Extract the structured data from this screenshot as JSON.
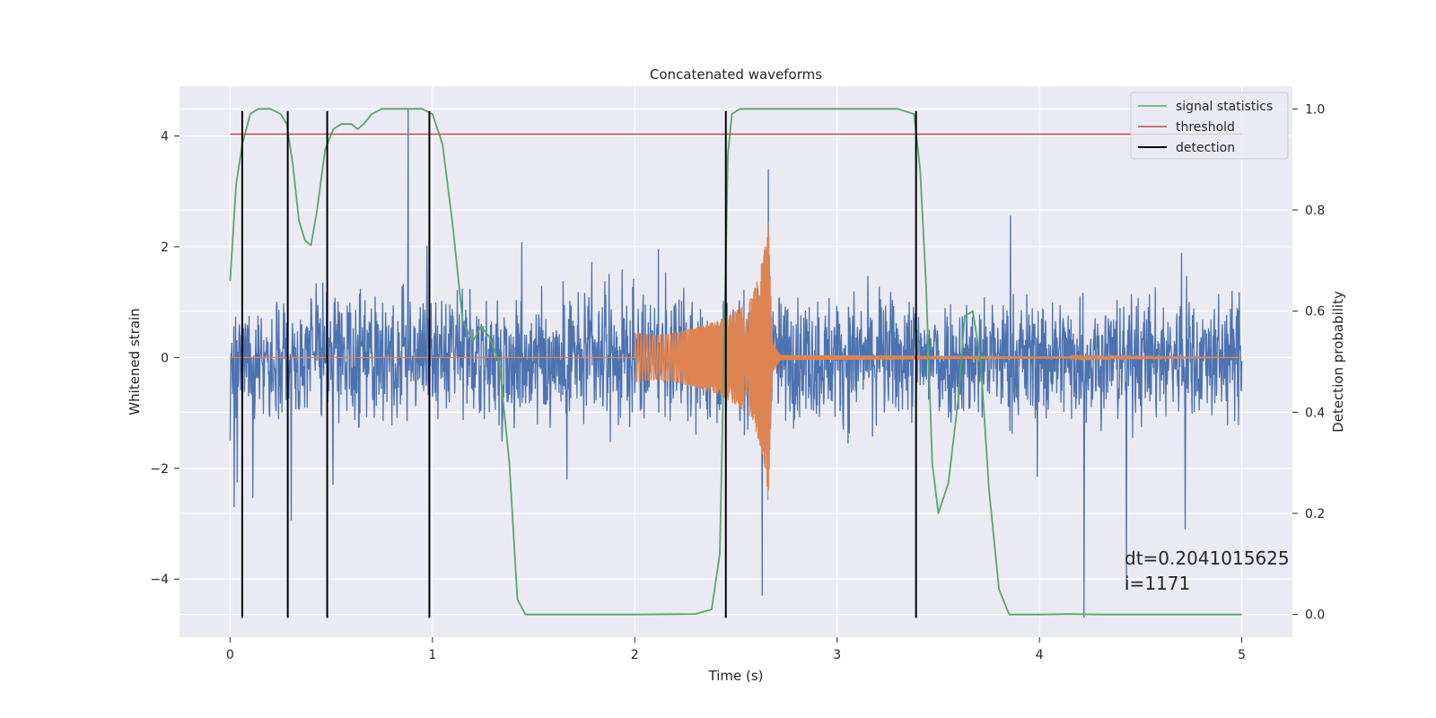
{
  "chart_data": {
    "type": "line",
    "title": "Concatenated waveforms",
    "xlabel": "Time (s)",
    "ylabel": "Whitened strain",
    "y2label": "Detection probability",
    "xlim": [
      -0.25,
      5.25
    ],
    "ylim": [
      -5.05,
      4.9
    ],
    "y2lim": [
      -0.045,
      1.045
    ],
    "xticks": [
      0,
      1,
      2,
      3,
      4,
      5
    ],
    "yticks": [
      -4,
      -2,
      0,
      2,
      4
    ],
    "y2ticks": [
      0.0,
      0.2,
      0.4,
      0.6,
      0.8,
      1.0
    ],
    "y2tick_labels": [
      "0.0",
      "0.2",
      "0.4",
      "0.6",
      "0.8",
      "1.0"
    ],
    "grid": true,
    "legend_position": "top-right",
    "legend": [
      "signal statistics",
      "threshold",
      "detection"
    ],
    "colors": {
      "strain": "#4c72b0",
      "injection": "#dd8452",
      "signal_statistics": "#55a868",
      "threshold": "#c44e52",
      "detection": "#000000",
      "background": "#eaeaf2",
      "grid": "#ffffff"
    },
    "series": [
      {
        "name": "signal statistics",
        "axis": "right",
        "x": [
          0.0,
          0.03,
          0.06,
          0.1,
          0.14,
          0.2,
          0.25,
          0.28,
          0.31,
          0.34,
          0.37,
          0.4,
          0.43,
          0.47,
          0.51,
          0.55,
          0.6,
          0.63,
          0.66,
          0.7,
          0.75,
          0.8,
          0.85,
          0.9,
          0.95,
          1.0,
          1.05,
          1.1,
          1.15,
          1.2,
          1.24,
          1.28,
          1.33,
          1.38,
          1.42,
          1.46,
          1.5,
          2.0,
          2.3,
          2.38,
          2.42,
          2.44,
          2.46,
          2.48,
          2.52,
          2.6,
          3.0,
          3.3,
          3.38,
          3.41,
          3.44,
          3.47,
          3.5,
          3.55,
          3.6,
          3.63,
          3.67,
          3.71,
          3.75,
          3.8,
          3.85,
          4.0,
          4.15,
          4.3,
          5.0
        ],
        "y": [
          0.66,
          0.85,
          0.93,
          0.99,
          1.0,
          1.0,
          0.99,
          0.97,
          0.89,
          0.78,
          0.74,
          0.73,
          0.8,
          0.92,
          0.96,
          0.97,
          0.97,
          0.96,
          0.97,
          0.99,
          1.0,
          1.0,
          1.0,
          1.0,
          1.0,
          0.99,
          0.93,
          0.77,
          0.58,
          0.54,
          0.57,
          0.55,
          0.5,
          0.3,
          0.03,
          0.0,
          0.0,
          0.0,
          0.001,
          0.01,
          0.12,
          0.5,
          0.91,
          0.99,
          1.0,
          1.0,
          1.0,
          1.0,
          0.99,
          0.88,
          0.65,
          0.3,
          0.2,
          0.26,
          0.43,
          0.59,
          0.6,
          0.5,
          0.25,
          0.05,
          0.0,
          0.0,
          0.001,
          0.0,
          0.0
        ]
      },
      {
        "name": "threshold",
        "axis": "right",
        "x": [
          0.0,
          5.0
        ],
        "y": [
          0.95,
          0.95
        ]
      },
      {
        "name": "detection",
        "axis": "left",
        "x": [
          0.06,
          0.285,
          0.48,
          0.985,
          2.45,
          3.39
        ],
        "y_range": [
          -4.7,
          4.45
        ]
      }
    ],
    "strain_noise": {
      "axis": "left",
      "x_range": [
        0.0,
        5.0
      ],
      "typical_range": [
        -1.5,
        1.5
      ],
      "peaks": [
        {
          "x": 0.0,
          "y": -1.5
        },
        {
          "x": 0.02,
          "y": -2.7
        },
        {
          "x": 0.88,
          "y": 4.5
        },
        {
          "x": 2.63,
          "y": -4.3
        },
        {
          "x": 2.66,
          "y": 3.4
        },
        {
          "x": 4.22,
          "y": -4.7
        },
        {
          "x": 4.43,
          "y": -4.2
        },
        {
          "x": 4.72,
          "y": -3.1
        }
      ]
    },
    "injection": {
      "axis": "left",
      "baseline": 0.0,
      "x": [
        2.0,
        2.1,
        2.2,
        2.3,
        2.4,
        2.5,
        2.58,
        2.62,
        2.65,
        2.66,
        2.68,
        2.72,
        5.0
      ],
      "amplitude": [
        0.45,
        0.4,
        0.45,
        0.55,
        0.65,
        0.85,
        1.1,
        1.6,
        2.1,
        2.8,
        0.3,
        0.05,
        0.0
      ]
    },
    "annotation": "dt=0.2041015625\n i=1171"
  }
}
